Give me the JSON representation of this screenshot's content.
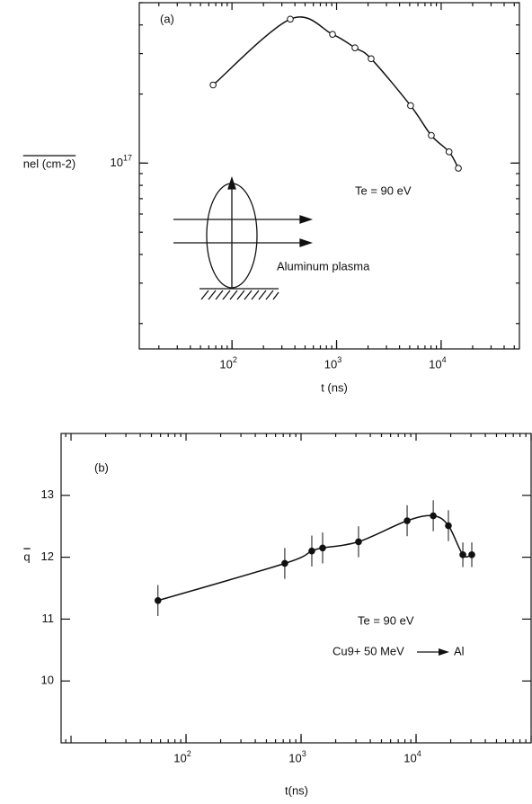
{
  "chart_data": [
    {
      "type": "line",
      "x_label": "t (ns)",
      "y_label": "nel (cm-2)",
      "x_scale": "log",
      "y_scale": "log",
      "xlim": [
        13,
        56000
      ],
      "ylim": [
        1.55e+16,
        5e+17
      ],
      "xticks": [
        {
          "value": 100,
          "label": "10^2"
        },
        {
          "value": 1000,
          "label": "10^3"
        },
        {
          "value": 10000,
          "label": "10^4"
        }
      ],
      "yticks": [
        {
          "value": 1e+17,
          "label": "10^17"
        }
      ],
      "annotations": [
        "(a)",
        "Te = 90 eV",
        "Aluminum plasma"
      ],
      "series": [
        {
          "color": "#111111",
          "marker": "open-circle",
          "x": [
            66,
            361,
            915,
            1500,
            2140,
            5100,
            8050,
            11900,
            14600
          ],
          "values": [
            2.19e+17,
            4.24e+17,
            3.64e+17,
            3.18e+17,
            2.85e+17,
            1.78e+17,
            1.32e+17,
            1.12e+17,
            9.5e+16
          ]
        }
      ]
    },
    {
      "type": "line",
      "x_label": "t(ns)",
      "y_label": "q",
      "x_scale": "log",
      "y_scale": "linear",
      "xlim": [
        8.2,
        100000
      ],
      "ylim": [
        9,
        14
      ],
      "xticks": [
        {
          "value": 100,
          "label": "10^2"
        },
        {
          "value": 1000,
          "label": "10^3"
        },
        {
          "value": 10000,
          "label": "10^4"
        }
      ],
      "yticks": [
        10,
        11,
        12,
        13
      ],
      "annotations": [
        "(b)",
        "Te = 90 eV",
        "Cu9+",
        "50 MeV",
        "Al"
      ],
      "series": [
        {
          "color": "#111111",
          "marker": "filled-circle",
          "x": [
            57,
            722,
            1240,
            1540,
            3160,
            8360,
            14100,
            19100,
            25500,
            30500
          ],
          "values": [
            11.3,
            11.9,
            12.1,
            12.15,
            12.25,
            12.59,
            12.67,
            12.51,
            12.04,
            12.04
          ],
          "errors": [
            0.25,
            0.25,
            0.25,
            0.25,
            0.25,
            0.25,
            0.25,
            0.25,
            0.2,
            0.2
          ]
        }
      ]
    }
  ]
}
